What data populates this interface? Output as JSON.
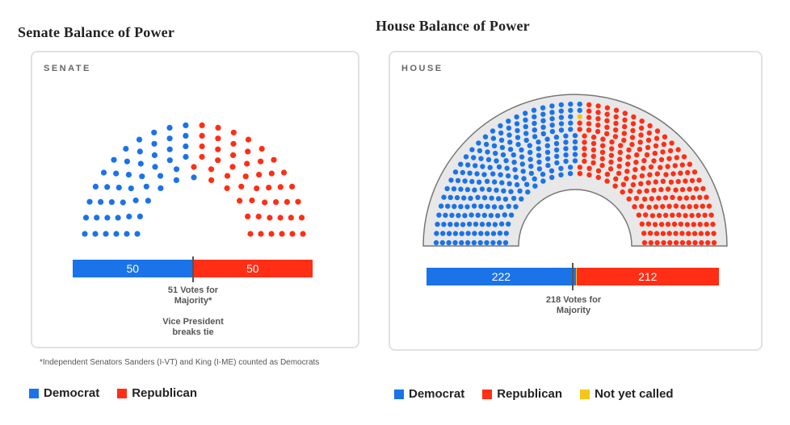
{
  "colors": {
    "democrat": "#1a73e8",
    "republican": "#ff2e14",
    "not_called": "#f5c518",
    "arch_fill": "#e8e8e8"
  },
  "senate": {
    "panel_title": "Senate Balance of Power",
    "card_label": "SENATE",
    "dem_label": "50",
    "rep_label": "50",
    "majority_note": "51 Votes for Majority*",
    "tie_note": "Vice President breaks tie",
    "footnote": "*Independent Senators Sanders (I-VT) and King (I-ME) counted as Democrats",
    "legend": [
      {
        "label": "Democrat",
        "color": "#1a73e8"
      },
      {
        "label": "Republican",
        "color": "#ff2e14"
      }
    ]
  },
  "house": {
    "panel_title": "House Balance of Power",
    "card_label": "HOUSE",
    "dem_label": "222",
    "rep_label": "212",
    "majority_note": "218 Votes for Majority",
    "legend": [
      {
        "label": "Democrat",
        "color": "#1a73e8"
      },
      {
        "label": "Republican",
        "color": "#ff2e14"
      },
      {
        "label": "Not yet called",
        "color": "#f5c518"
      }
    ]
  },
  "chart_data": [
    {
      "type": "bar",
      "chamber": "Senate",
      "categories": [
        "Democrat",
        "Republican"
      ],
      "values": [
        50,
        50
      ],
      "seats_total": 100,
      "majority_threshold": 51
    },
    {
      "type": "bar",
      "chamber": "House",
      "categories": [
        "Democrat",
        "Republican",
        "Not yet called"
      ],
      "values": [
        222,
        212,
        1
      ],
      "seats_total": 435,
      "majority_threshold": 218
    }
  ]
}
